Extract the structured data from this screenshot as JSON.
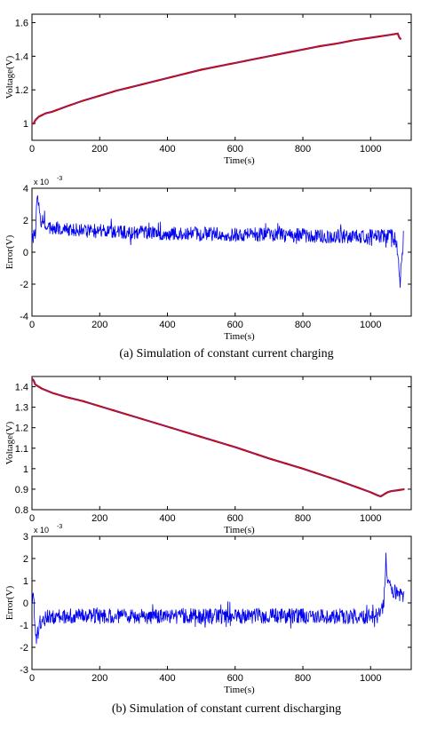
{
  "figure": {
    "caption_a": "(a) Simulation of constant current charging",
    "caption_b": "(b) Simulation of constant current discharging"
  },
  "chart_data": [
    {
      "type": "line",
      "xlabel": "Time(s)",
      "ylabel": "Voltage(V)",
      "xlim": [
        0,
        1120
      ],
      "ylim": [
        0.9,
        1.65
      ],
      "xticks": [
        0,
        200,
        400,
        600,
        800,
        1000
      ],
      "xticklabels": [
        "0",
        "200",
        "400",
        "600",
        "800",
        "1000"
      ],
      "yticks": [
        1,
        1.2,
        1.4,
        1.6
      ],
      "yticklabels": [
        "1",
        "1.2",
        "1.4",
        "1.6"
      ],
      "grid": false,
      "colors": {
        "measured": "#cc0000",
        "estimated": "#7a2a8c"
      },
      "x": [
        0,
        5,
        10,
        20,
        40,
        60,
        100,
        150,
        200,
        250,
        300,
        350,
        400,
        450,
        500,
        550,
        600,
        650,
        700,
        750,
        800,
        850,
        900,
        950,
        1000,
        1050,
        1080,
        1085,
        1090
      ],
      "values": [
        1.0,
        1.0,
        1.02,
        1.04,
        1.06,
        1.07,
        1.1,
        1.135,
        1.165,
        1.195,
        1.22,
        1.245,
        1.27,
        1.295,
        1.32,
        1.34,
        1.36,
        1.38,
        1.4,
        1.42,
        1.44,
        1.46,
        1.475,
        1.495,
        1.51,
        1.525,
        1.535,
        1.51,
        1.5
      ]
    },
    {
      "type": "line",
      "xlabel": "Time(s)",
      "ylabel": "Error(V)",
      "multiplier": "x 10",
      "multiplier_exp": "-3",
      "xlim": [
        0,
        1120
      ],
      "ylim": [
        -4,
        4
      ],
      "xticks": [
        0,
        200,
        400,
        600,
        800,
        1000
      ],
      "xticklabels": [
        "0",
        "200",
        "400",
        "600",
        "800",
        "1000"
      ],
      "yticks": [
        -4,
        -2,
        0,
        2,
        4
      ],
      "yticklabels": [
        "-4",
        "-2",
        "0",
        "2",
        "4"
      ],
      "grid": false,
      "color": "#0000ee",
      "anchors_x": [
        0,
        10,
        15,
        25,
        50,
        100,
        200,
        300,
        400,
        500,
        600,
        700,
        800,
        900,
        1000,
        1060,
        1075,
        1082,
        1087,
        1092,
        1097
      ],
      "anchors_y": [
        1.0,
        1.0,
        3.6,
        2.0,
        1.6,
        1.4,
        1.3,
        1.25,
        1.2,
        1.15,
        1.1,
        1.1,
        1.05,
        1.0,
        1.0,
        1.0,
        0.8,
        -0.5,
        -2.0,
        -0.2,
        0.6
      ],
      "noise_amplitude": 0.45
    },
    {
      "type": "line",
      "xlabel": "Time(s)",
      "ylabel": "Voltage(V)",
      "xlim": [
        0,
        1120
      ],
      "ylim": [
        0.8,
        1.45
      ],
      "xticks": [
        0,
        200,
        400,
        600,
        800,
        1000
      ],
      "xticklabels": [
        "0",
        "200",
        "400",
        "600",
        "800",
        "1000"
      ],
      "yticks": [
        0.8,
        0.9,
        1,
        1.1,
        1.2,
        1.3,
        1.4
      ],
      "yticklabels": [
        "0.8",
        "0.9",
        "1",
        "1.1",
        "1.2",
        "1.3",
        "1.4"
      ],
      "grid": false,
      "colors": {
        "measured": "#cc0000",
        "estimated": "#7a2a8c"
      },
      "x": [
        0,
        5,
        10,
        30,
        60,
        100,
        150,
        200,
        300,
        400,
        500,
        600,
        700,
        800,
        900,
        1000,
        1020,
        1030,
        1040,
        1050,
        1060,
        1080,
        1100
      ],
      "values": [
        1.44,
        1.43,
        1.41,
        1.39,
        1.37,
        1.35,
        1.33,
        1.305,
        1.255,
        1.205,
        1.155,
        1.105,
        1.05,
        1.0,
        0.945,
        0.885,
        0.87,
        0.865,
        0.875,
        0.885,
        0.89,
        0.895,
        0.9
      ]
    },
    {
      "type": "line",
      "xlabel": "Time(s)",
      "ylabel": "Error(V)",
      "multiplier": "x 10",
      "multiplier_exp": "-3",
      "xlim": [
        0,
        1120
      ],
      "ylim": [
        -3,
        3
      ],
      "xticks": [
        0,
        200,
        400,
        600,
        800,
        1000
      ],
      "xticklabels": [
        "0",
        "200",
        "400",
        "600",
        "800",
        "1000"
      ],
      "yticks": [
        -3,
        -2,
        -1,
        0,
        1,
        2,
        3
      ],
      "yticklabels": [
        "-3",
        "-2",
        "-1",
        "0",
        "1",
        "2",
        "3"
      ],
      "grid": false,
      "color": "#0000ee",
      "anchors_x": [
        0,
        5,
        10,
        15,
        20,
        30,
        50,
        100,
        300,
        500,
        700,
        900,
        1000,
        1030,
        1040,
        1045,
        1050,
        1060,
        1080,
        1100
      ],
      "anchors_y": [
        0.2,
        0.3,
        -1.2,
        -1.8,
        -1.0,
        -0.7,
        -0.65,
        -0.6,
        -0.6,
        -0.6,
        -0.6,
        -0.6,
        -0.6,
        -0.6,
        0.2,
        2.0,
        1.0,
        0.6,
        0.4,
        0.2
      ],
      "noise_amplitude": 0.35
    }
  ]
}
